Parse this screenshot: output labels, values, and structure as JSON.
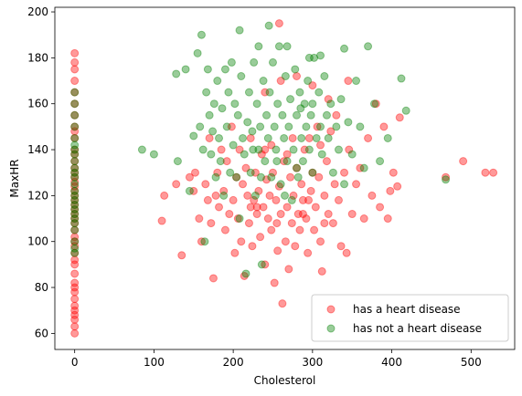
{
  "chart_data": {
    "type": "scatter",
    "xlabel": "Cholesterol",
    "ylabel": "MaxHR",
    "xlim": [
      -25,
      555
    ],
    "ylim": [
      53,
      202
    ],
    "x_ticks": [
      0,
      100,
      200,
      300,
      400,
      500
    ],
    "y_ticks": [
      60,
      80,
      100,
      120,
      140,
      160,
      180,
      200
    ],
    "grid": false,
    "legend_position": "lower-right",
    "series": [
      {
        "name": "has a heart disease",
        "color": "#ff0000",
        "alpha": 0.4,
        "points": [
          [
            0,
            182
          ],
          [
            0,
            178
          ],
          [
            0,
            175
          ],
          [
            0,
            170
          ],
          [
            0,
            165
          ],
          [
            0,
            160
          ],
          [
            0,
            155
          ],
          [
            0,
            150
          ],
          [
            0,
            148
          ],
          [
            0,
            145
          ],
          [
            0,
            140
          ],
          [
            0,
            138
          ],
          [
            0,
            135
          ],
          [
            0,
            132
          ],
          [
            0,
            130
          ],
          [
            0,
            128
          ],
          [
            0,
            126
          ],
          [
            0,
            124
          ],
          [
            0,
            122
          ],
          [
            0,
            120
          ],
          [
            0,
            118
          ],
          [
            0,
            116
          ],
          [
            0,
            114
          ],
          [
            0,
            112
          ],
          [
            0,
            110
          ],
          [
            0,
            108
          ],
          [
            0,
            105
          ],
          [
            0,
            102
          ],
          [
            0,
            100
          ],
          [
            0,
            98
          ],
          [
            0,
            95
          ],
          [
            0,
            92
          ],
          [
            0,
            90
          ],
          [
            0,
            86
          ],
          [
            0,
            82
          ],
          [
            0,
            80
          ],
          [
            0,
            78
          ],
          [
            0,
            75
          ],
          [
            0,
            72
          ],
          [
            0,
            70
          ],
          [
            0,
            68
          ],
          [
            0,
            66
          ],
          [
            0,
            63
          ],
          [
            0,
            60
          ],
          [
            110,
            109
          ],
          [
            113,
            120
          ],
          [
            128,
            125
          ],
          [
            135,
            94
          ],
          [
            145,
            128
          ],
          [
            150,
            122
          ],
          [
            152,
            130
          ],
          [
            157,
            110
          ],
          [
            160,
            100
          ],
          [
            165,
            125
          ],
          [
            168,
            118
          ],
          [
            170,
            145
          ],
          [
            172,
            108
          ],
          [
            175,
            84
          ],
          [
            178,
            120
          ],
          [
            180,
            130
          ],
          [
            182,
            115
          ],
          [
            185,
            140
          ],
          [
            188,
            122
          ],
          [
            190,
            105
          ],
          [
            192,
            135
          ],
          [
            195,
            112
          ],
          [
            198,
            150
          ],
          [
            200,
            118
          ],
          [
            202,
            95
          ],
          [
            204,
            128
          ],
          [
            206,
            110
          ],
          [
            208,
            140
          ],
          [
            210,
            100
          ],
          [
            212,
            125
          ],
          [
            214,
            85
          ],
          [
            216,
            132
          ],
          [
            218,
            120
          ],
          [
            220,
            108
          ],
          [
            222,
            145
          ],
          [
            224,
            98
          ],
          [
            226,
            118
          ],
          [
            228,
            130
          ],
          [
            230,
            112
          ],
          [
            232,
            122
          ],
          [
            234,
            102
          ],
          [
            236,
            138
          ],
          [
            238,
            115
          ],
          [
            240,
            90
          ],
          [
            242,
            127
          ],
          [
            244,
            110
          ],
          [
            246,
            120
          ],
          [
            248,
            105
          ],
          [
            250,
            130
          ],
          [
            252,
            82
          ],
          [
            254,
            118
          ],
          [
            256,
            96
          ],
          [
            258,
            124
          ],
          [
            260,
            112
          ],
          [
            262,
            73
          ],
          [
            264,
            135
          ],
          [
            266,
            100
          ],
          [
            268,
            115
          ],
          [
            270,
            88
          ],
          [
            272,
            128
          ],
          [
            274,
            108
          ],
          [
            276,
            120
          ],
          [
            278,
            98
          ],
          [
            280,
            132
          ],
          [
            282,
            112
          ],
          [
            284,
            105
          ],
          [
            286,
            125
          ],
          [
            288,
            118
          ],
          [
            290,
            140
          ],
          [
            292,
            110
          ],
          [
            294,
            95
          ],
          [
            296,
            145
          ],
          [
            298,
            122
          ],
          [
            300,
            130
          ],
          [
            302,
            105
          ],
          [
            304,
            115
          ],
          [
            306,
            150
          ],
          [
            308,
            128
          ],
          [
            310,
            100
          ],
          [
            312,
            87
          ],
          [
            315,
            120
          ],
          [
            318,
            135
          ],
          [
            320,
            112
          ],
          [
            323,
            148
          ],
          [
            326,
            108
          ],
          [
            328,
            125
          ],
          [
            330,
            155
          ],
          [
            333,
            118
          ],
          [
            336,
            98
          ],
          [
            340,
            130
          ],
          [
            343,
            95
          ],
          [
            346,
            140
          ],
          [
            350,
            112
          ],
          [
            355,
            125
          ],
          [
            360,
            132
          ],
          [
            365,
            110
          ],
          [
            370,
            145
          ],
          [
            375,
            120
          ],
          [
            380,
            160
          ],
          [
            385,
            115
          ],
          [
            390,
            150
          ],
          [
            395,
            110
          ],
          [
            398,
            122
          ],
          [
            402,
            130
          ],
          [
            407,
            124
          ],
          [
            410,
            154
          ],
          [
            258,
            195
          ],
          [
            490,
            135
          ],
          [
            518,
            130
          ],
          [
            528,
            130
          ],
          [
            468,
            128
          ],
          [
            240,
            165
          ],
          [
            260,
            170
          ],
          [
            280,
            172
          ],
          [
            300,
            168
          ],
          [
            320,
            162
          ],
          [
            345,
            170
          ],
          [
            230,
            115
          ],
          [
            248,
            142
          ],
          [
            268,
            138
          ],
          [
            288,
            112
          ],
          [
            310,
            142
          ],
          [
            240,
            140
          ],
          [
            222,
            115
          ],
          [
            255,
            108
          ],
          [
            275,
            145
          ],
          [
            295,
            118
          ],
          [
            315,
            108
          ]
        ]
      },
      {
        "name": "has not a heart disease",
        "color": "#008000",
        "alpha": 0.4,
        "points": [
          [
            0,
            165
          ],
          [
            0,
            160
          ],
          [
            0,
            155
          ],
          [
            0,
            150
          ],
          [
            0,
            145
          ],
          [
            0,
            142
          ],
          [
            0,
            140
          ],
          [
            0,
            138
          ],
          [
            0,
            135
          ],
          [
            0,
            132
          ],
          [
            0,
            130
          ],
          [
            0,
            128
          ],
          [
            0,
            125
          ],
          [
            0,
            122
          ],
          [
            0,
            120
          ],
          [
            0,
            118
          ],
          [
            0,
            116
          ],
          [
            0,
            114
          ],
          [
            0,
            112
          ],
          [
            0,
            110
          ],
          [
            0,
            108
          ],
          [
            0,
            105
          ],
          [
            0,
            100
          ],
          [
            0,
            97
          ],
          [
            0,
            95
          ],
          [
            85,
            140
          ],
          [
            100,
            138
          ],
          [
            128,
            173
          ],
          [
            130,
            135
          ],
          [
            140,
            175
          ],
          [
            145,
            122
          ],
          [
            150,
            146
          ],
          [
            155,
            182
          ],
          [
            158,
            150
          ],
          [
            160,
            190
          ],
          [
            162,
            140
          ],
          [
            164,
            100
          ],
          [
            166,
            165
          ],
          [
            168,
            175
          ],
          [
            170,
            155
          ],
          [
            172,
            138
          ],
          [
            174,
            148
          ],
          [
            176,
            160
          ],
          [
            178,
            128
          ],
          [
            180,
            170
          ],
          [
            182,
            145
          ],
          [
            184,
            135
          ],
          [
            186,
            158
          ],
          [
            188,
            120
          ],
          [
            190,
            175
          ],
          [
            192,
            150
          ],
          [
            194,
            165
          ],
          [
            196,
            130
          ],
          [
            198,
            178
          ],
          [
            200,
            142
          ],
          [
            202,
            160
          ],
          [
            204,
            128
          ],
          [
            206,
            155
          ],
          [
            208,
            110
          ],
          [
            210,
            172
          ],
          [
            212,
            145
          ],
          [
            214,
            138
          ],
          [
            216,
            86
          ],
          [
            218,
            152
          ],
          [
            220,
            165
          ],
          [
            222,
            130
          ],
          [
            224,
            148
          ],
          [
            226,
            178
          ],
          [
            228,
            120
          ],
          [
            230,
            160
          ],
          [
            232,
            140
          ],
          [
            234,
            150
          ],
          [
            236,
            90
          ],
          [
            238,
            170
          ],
          [
            240,
            135
          ],
          [
            242,
            155
          ],
          [
            244,
            145
          ],
          [
            246,
            165
          ],
          [
            248,
            128
          ],
          [
            250,
            178
          ],
          [
            252,
            150
          ],
          [
            254,
            140
          ],
          [
            256,
            160
          ],
          [
            258,
            185
          ],
          [
            260,
            125
          ],
          [
            262,
            155
          ],
          [
            264,
            145
          ],
          [
            266,
            172
          ],
          [
            268,
            135
          ],
          [
            270,
            150
          ],
          [
            272,
            162
          ],
          [
            274,
            118
          ],
          [
            276,
            140
          ],
          [
            278,
            175
          ],
          [
            280,
            155
          ],
          [
            282,
            128
          ],
          [
            284,
            165
          ],
          [
            286,
            145
          ],
          [
            288,
            135
          ],
          [
            290,
            160
          ],
          [
            292,
            150
          ],
          [
            294,
            170
          ],
          [
            296,
            140
          ],
          [
            298,
            155
          ],
          [
            300,
            130
          ],
          [
            302,
            180
          ],
          [
            305,
            145
          ],
          [
            308,
            165
          ],
          [
            310,
            150
          ],
          [
            312,
            138
          ],
          [
            315,
            172
          ],
          [
            318,
            155
          ],
          [
            320,
            145
          ],
          [
            323,
            160
          ],
          [
            326,
            130
          ],
          [
            330,
            150
          ],
          [
            333,
            140
          ],
          [
            336,
            162
          ],
          [
            340,
            125
          ],
          [
            345,
            152
          ],
          [
            350,
            138
          ],
          [
            355,
            170
          ],
          [
            360,
            150
          ],
          [
            365,
            132
          ],
          [
            370,
            185
          ],
          [
            378,
            160
          ],
          [
            385,
            135
          ],
          [
            395,
            145
          ],
          [
            412,
            171
          ],
          [
            418,
            157
          ],
          [
            468,
            127
          ],
          [
            208,
            192
          ],
          [
            232,
            185
          ],
          [
            245,
            194
          ],
          [
            268,
            185
          ],
          [
            296,
            180
          ],
          [
            310,
            181
          ],
          [
            340,
            184
          ],
          [
            300,
            160
          ],
          [
            285,
            158
          ],
          [
            255,
            135
          ],
          [
            235,
            128
          ],
          [
            265,
            120
          ],
          [
            280,
            132
          ],
          [
            225,
            140
          ]
        ]
      }
    ]
  }
}
